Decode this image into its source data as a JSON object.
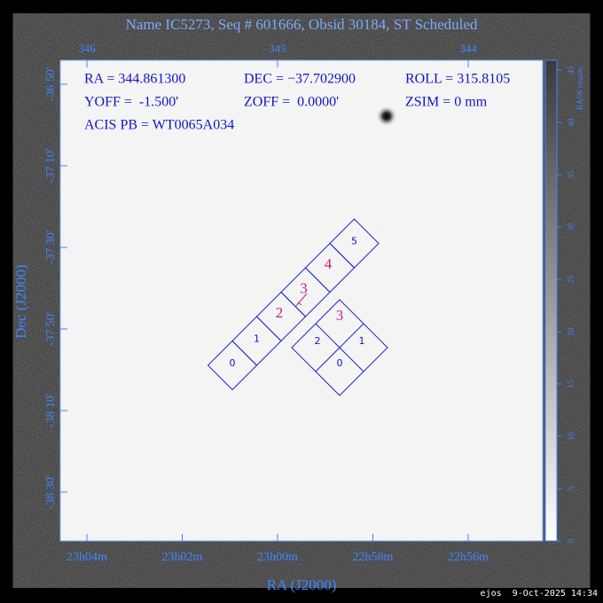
{
  "header": {
    "title": "Name IC5273, Seq # 601666, Obsid 30184, ST Scheduled"
  },
  "top_axis": {
    "ticks": [
      "346",
      "345",
      "344"
    ]
  },
  "bottom_axis": {
    "title": "RA (J2000)",
    "ticks": [
      "23h04m",
      "23h02m",
      "23h00m",
      "22h58m",
      "22h56m"
    ]
  },
  "left_axis": {
    "title": "Dec (J2000)",
    "ticks": [
      "-36 50'",
      "-37 10'",
      "-37 30'",
      "-37 50'",
      "-38 10'",
      "-38 30'"
    ]
  },
  "colorbar": {
    "title": "RASS counts",
    "ticks": [
      "0",
      "5",
      "10",
      "15",
      "20",
      "25",
      "30",
      "35",
      "40",
      "45"
    ]
  },
  "info": {
    "rows": [
      [
        "RA = 344.861300",
        "DEC = −37.702900",
        "ROLL = 315.8105"
      ],
      [
        "YOFF =  -1.500'",
        "ZOFF =  0.0000'",
        "ZSIM = 0 mm"
      ],
      [
        "ACIS PB = WT0065A034"
      ]
    ]
  },
  "chips": {
    "s_array": [
      "0",
      "1",
      "2",
      "3",
      "4",
      "5"
    ],
    "i_array": [
      "0",
      "1",
      "2",
      "3"
    ]
  },
  "footer": "ejos  9-Oct-2025 14:34"
}
